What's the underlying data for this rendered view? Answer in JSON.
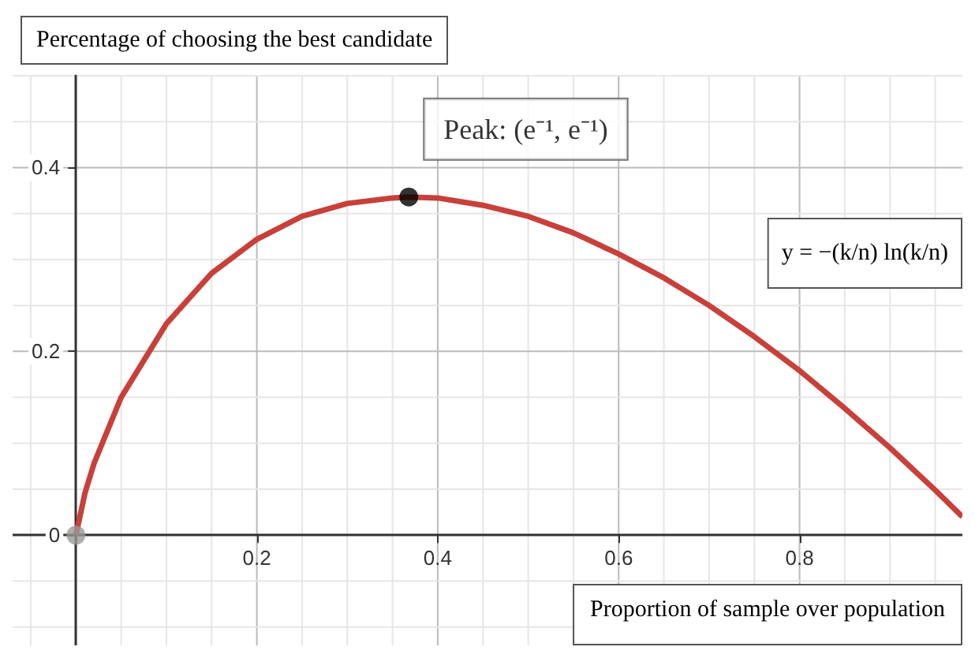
{
  "chart_data": {
    "type": "line",
    "title": "Percentage of choosing the best candidate",
    "xlabel": "Proportion of sample over population",
    "annotations": [
      {
        "text": "Peak: (e⁻¹, e⁻¹)",
        "x": 0.368,
        "y": 0.368
      },
      "y = −(k/n) ln(k/n)"
    ],
    "xlim": [
      -0.07,
      0.98
    ],
    "ylim": [
      -0.12,
      0.5
    ],
    "xticks": [
      {
        "value": 0,
        "label": null
      },
      0.2,
      0.4,
      0.6,
      0.8
    ],
    "yticks": [
      0,
      0.2,
      0.4
    ],
    "grid": true,
    "series": [
      {
        "color": "#c8403a",
        "x": [
          0,
          0.01,
          0.02,
          0.05,
          0.1,
          0.15,
          0.2,
          0.25,
          0.3,
          0.35,
          0.368,
          0.4,
          0.45,
          0.5,
          0.55,
          0.6,
          0.65,
          0.7,
          0.75,
          0.8,
          0.85,
          0.9,
          0.95,
          0.98
        ],
        "values": [
          0,
          0.046,
          0.078,
          0.15,
          0.23,
          0.285,
          0.322,
          0.347,
          0.361,
          0.367,
          0.368,
          0.367,
          0.359,
          0.347,
          0.329,
          0.306,
          0.28,
          0.25,
          0.216,
          0.179,
          0.138,
          0.095,
          0.049,
          0.02
        ]
      },
      {
        "type": "scatter",
        "color": "#000000",
        "x": [
          0.368
        ],
        "values": [
          0.368
        ]
      },
      {
        "type": "scatter",
        "color": "#999999",
        "x": [
          0
        ],
        "values": [
          0
        ]
      }
    ]
  }
}
